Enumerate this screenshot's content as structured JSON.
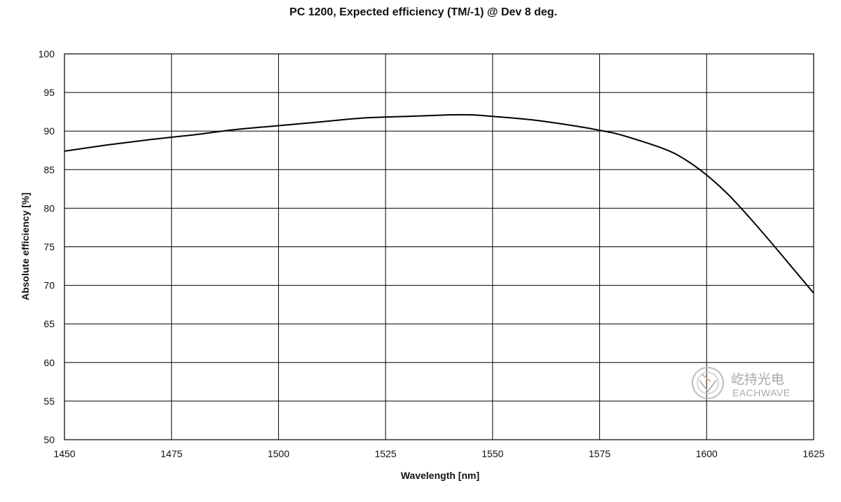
{
  "chart_data": {
    "type": "line",
    "title": "PC 1200, Expected efficiency (TM/-1) @ Dev 8 deg.",
    "xlabel": "Wavelength [nm]",
    "ylabel": "Absolute efficiency [%]",
    "xlim": [
      1450,
      1625
    ],
    "ylim": [
      50,
      100
    ],
    "xticks": [
      1450,
      1475,
      1500,
      1525,
      1550,
      1575,
      1600,
      1625
    ],
    "yticks": [
      50,
      55,
      60,
      65,
      70,
      75,
      80,
      85,
      90,
      95,
      100
    ],
    "grid": true,
    "series": [
      {
        "color": "#000000",
        "x": [
          1450,
          1460,
          1470,
          1480,
          1490,
          1500,
          1510,
          1520,
          1530,
          1540,
          1545,
          1550,
          1560,
          1570,
          1575,
          1580,
          1590,
          1595,
          1600,
          1605,
          1610,
          1615,
          1620,
          1625
        ],
        "y": [
          87.4,
          88.2,
          88.9,
          89.5,
          90.2,
          90.7,
          91.2,
          91.7,
          91.9,
          92.1,
          92.1,
          91.9,
          91.4,
          90.6,
          90.1,
          89.5,
          87.7,
          86.3,
          84.3,
          81.8,
          78.8,
          75.6,
          72.3,
          69.0
        ]
      }
    ]
  },
  "watermark": {
    "brand_cn": "屹持光电",
    "brand_en": "EACHWAVE",
    "logo": "eachwave-logo-icon"
  }
}
